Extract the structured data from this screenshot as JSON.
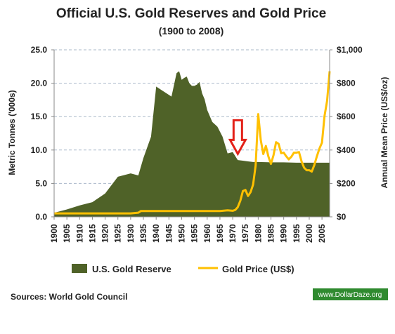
{
  "chart_data": {
    "type": "area",
    "title": "Official U.S. Gold Reserves and Gold Price",
    "subtitle": "(1900 to 2008)",
    "ylabel_left": "Metric Tonnes ('000s)",
    "ylabel_right": "Annual Mean Price (US$/oz)",
    "ylim_left": [
      0,
      25
    ],
    "ylim_right": [
      0,
      1000
    ],
    "xlim": [
      1900,
      2008
    ],
    "grid": "horizontal-dashed",
    "legend_position": "bottom",
    "x_ticks": [
      "1900",
      "1905",
      "1910",
      "1915",
      "1920",
      "1925",
      "1930",
      "1935",
      "1940",
      "1945",
      "1950",
      "1955",
      "1960",
      "1965",
      "1970",
      "1975",
      "1980",
      "1985",
      "1990",
      "1995",
      "2000",
      "2005"
    ],
    "y_ticks_left": [
      "0.0",
      "5.0",
      "10.0",
      "15.0",
      "20.0",
      "25.0"
    ],
    "y_ticks_right": [
      "$0",
      "$200",
      "$400",
      "$600",
      "$800",
      "$1,000"
    ],
    "series": [
      {
        "name": "U.S. Gold Reserve",
        "type": "area",
        "axis": "left",
        "color": "#4f6228",
        "x": [
          1900,
          1905,
          1910,
          1915,
          1920,
          1925,
          1930,
          1933,
          1935,
          1938,
          1940,
          1942,
          1944,
          1946,
          1948,
          1949,
          1950,
          1951,
          1952,
          1953,
          1954,
          1955,
          1956,
          1957,
          1958,
          1959,
          1960,
          1962,
          1964,
          1966,
          1968,
          1970,
          1972,
          1974,
          1976,
          1978,
          1980,
          1985,
          1990,
          1995,
          2000,
          2005,
          2008
        ],
        "values": [
          0.6,
          1.1,
          1.7,
          2.2,
          3.5,
          6.0,
          6.5,
          6.2,
          8.8,
          12.0,
          19.5,
          19.0,
          18.5,
          18.0,
          21.5,
          21.8,
          20.5,
          20.8,
          21.0,
          20.0,
          19.6,
          19.6,
          19.8,
          20.2,
          18.5,
          17.6,
          16.0,
          14.2,
          13.5,
          12.0,
          9.5,
          9.7,
          8.5,
          8.4,
          8.3,
          8.2,
          8.2,
          8.15,
          8.15,
          8.1,
          8.1,
          8.1,
          8.1
        ]
      },
      {
        "name": "Gold Price (US$)",
        "type": "line",
        "axis": "right",
        "color": "#ffc000",
        "x": [
          1900,
          1905,
          1910,
          1915,
          1920,
          1925,
          1930,
          1933,
          1934,
          1935,
          1940,
          1945,
          1950,
          1955,
          1960,
          1965,
          1968,
          1970,
          1971,
          1972,
          1973,
          1974,
          1975,
          1976,
          1977,
          1978,
          1979,
          1980,
          1981,
          1982,
          1983,
          1984,
          1985,
          1986,
          1987,
          1988,
          1989,
          1990,
          1991,
          1992,
          1993,
          1994,
          1995,
          1996,
          1997,
          1998,
          1999,
          2000,
          2001,
          2002,
          2003,
          2004,
          2005,
          2006,
          2007,
          2008
        ],
        "values": [
          20.7,
          20.7,
          20.7,
          20.7,
          20.7,
          20.7,
          20.7,
          25,
          35,
          35,
          35,
          35,
          35,
          35,
          35,
          35,
          39,
          36,
          41,
          58,
          97,
          154,
          161,
          125,
          148,
          193,
          307,
          615,
          460,
          376,
          424,
          361,
          317,
          368,
          447,
          437,
          381,
          384,
          362,
          344,
          360,
          384,
          384,
          388,
          331,
          294,
          279,
          279,
          271,
          310,
          363,
          409,
          444,
          603,
          695,
          872
        ]
      }
    ],
    "annotation": "red-down-arrow-at-1972",
    "legend": [
      "U.S. Gold Reserve",
      "Gold Price (US$)"
    ],
    "source": "Sources: World Gold Council",
    "watermark": "www.DollarDaze.org"
  },
  "colors": {
    "reserve": "#4f6228",
    "price": "#ffc000",
    "arrow": "#e32119",
    "watermark_bg": "#2f8a2f"
  }
}
